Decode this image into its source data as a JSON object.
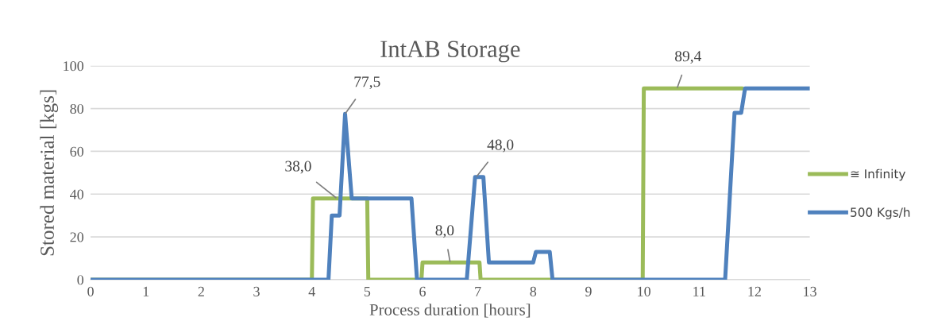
{
  "chart_data": {
    "type": "line",
    "title": "IntAB Storage",
    "xlabel": "Process duration [hours]",
    "ylabel": "Stored material [kgs]",
    "xlim": [
      0,
      13
    ],
    "xticks": [
      0,
      1,
      2,
      3,
      4,
      5,
      6,
      7,
      8,
      9,
      10,
      11,
      12,
      13
    ],
    "ylim": [
      0,
      100
    ],
    "yticks": [
      0,
      20,
      40,
      60,
      80,
      100
    ],
    "grid": "y",
    "legend": "right",
    "marker": "none",
    "line_style": "solid",
    "series": [
      {
        "name": "≅ Infinity",
        "color": "#9bbb59",
        "x": [
          0,
          4.0,
          4.02,
          5.0,
          5.02,
          5.98,
          6.0,
          7.03,
          7.05,
          9.98,
          10.0,
          11.78
        ],
        "values": [
          0,
          0,
          38,
          38,
          0,
          0,
          8,
          8,
          0,
          0,
          89.4,
          89.4
        ]
      },
      {
        "name": "500 Kgs/h",
        "color": "#4f81bd",
        "x": [
          0,
          4.3,
          4.36,
          4.5,
          4.6,
          4.72,
          5.8,
          5.9,
          6.8,
          6.95,
          7.1,
          7.2,
          8.0,
          8.05,
          8.3,
          8.35,
          11.47,
          11.64,
          11.76,
          11.83,
          13
        ],
        "values": [
          0,
          0,
          30,
          30,
          77.5,
          38,
          38,
          0,
          0,
          48,
          48,
          8,
          8,
          13,
          13,
          0,
          0,
          78,
          78,
          89.4,
          89.4
        ]
      }
    ],
    "annotations": [
      {
        "text": "38,0",
        "x": 4.45,
        "y": 38
      },
      {
        "text": "77,5",
        "x": 4.6,
        "y": 77.5
      },
      {
        "text": "8,0",
        "x": 6.5,
        "y": 8
      },
      {
        "text": "48,0",
        "x": 6.97,
        "y": 48
      },
      {
        "text": "89,4",
        "x": 10.6,
        "y": 89.4
      }
    ]
  }
}
